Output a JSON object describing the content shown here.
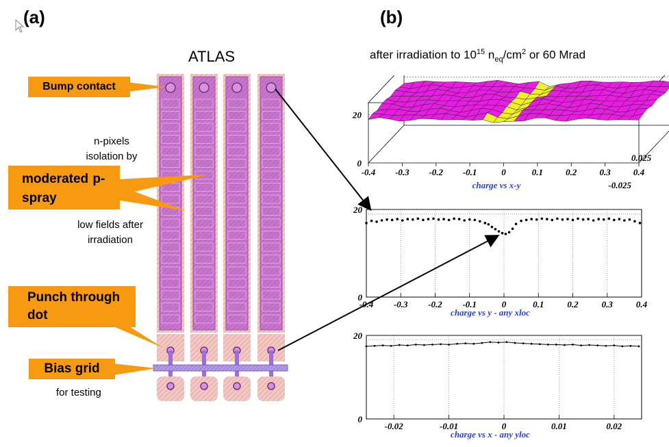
{
  "panel_a": {
    "label": "(a)",
    "title": "ATLAS",
    "callouts": {
      "bump_contact": "Bump contact",
      "moderated_p_spray": "moderated p-spray",
      "punch_through_dot": "Punch through dot",
      "bias_grid": "Bias grid"
    },
    "notes": {
      "n_pixels": "n-pixels isolation by",
      "low_fields": "low fields after irradiation",
      "for_testing": "for testing"
    }
  },
  "panel_b": {
    "label": "(b)",
    "title_main": "after irradiation to 10",
    "title_exp": "15",
    "title_neq": " n",
    "title_neq_sub": "eq",
    "title_unit": "/cm",
    "title_unit_exp": "2",
    "title_tail": " or 60 Mrad"
  },
  "colors": {
    "callout": "#f79a12",
    "pixel_fill": "#c774cc",
    "pixel_edge": "#e3a39b",
    "surface_magenta": "#e51ee0",
    "surface_yellow": "#eef02a",
    "caption_blue": "#2a40d8"
  },
  "chart_data": [
    {
      "type": "surface",
      "caption": "charge vs x-y",
      "x_ticks": [
        "-0.4",
        "-0.3",
        "-0.2",
        "-0.1",
        "0",
        "0.1",
        "0.2",
        "0.3",
        "0.4"
      ],
      "y_ticks": [
        "-0.025",
        "0.025"
      ],
      "z_ticks": [
        "0",
        "20"
      ],
      "xlim": [
        -0.4,
        0.4
      ],
      "ylim": [
        -0.025,
        0.025
      ],
      "zlim": [
        0,
        25
      ],
      "plateau": 18,
      "dip": 16
    },
    {
      "type": "scatter",
      "caption": "charge vs y - any xloc",
      "x_ticks": [
        "-0.4",
        "-0.3",
        "-0.2",
        "-0.1",
        "0",
        "0.1",
        "0.2",
        "0.3",
        "0.4"
      ],
      "y_ticks": [
        "0",
        "20"
      ],
      "xlim": [
        -0.4,
        0.4
      ],
      "ylim": [
        0,
        20
      ],
      "x": [
        -0.4,
        -0.385,
        -0.37,
        -0.355,
        -0.34,
        -0.325,
        -0.31,
        -0.295,
        -0.28,
        -0.265,
        -0.25,
        -0.235,
        -0.22,
        -0.205,
        -0.19,
        -0.175,
        -0.16,
        -0.145,
        -0.13,
        -0.115,
        -0.1,
        -0.085,
        -0.07,
        -0.055,
        -0.045,
        -0.035,
        -0.025,
        -0.015,
        -0.005,
        0.005,
        0.015,
        0.025,
        0.035,
        0.05,
        0.065,
        0.08,
        0.095,
        0.11,
        0.125,
        0.14,
        0.155,
        0.17,
        0.185,
        0.2,
        0.215,
        0.23,
        0.245,
        0.26,
        0.275,
        0.29,
        0.305,
        0.32,
        0.335,
        0.35,
        0.365,
        0.38,
        0.395
      ],
      "y": [
        16.9,
        17.4,
        17.2,
        17.5,
        17.7,
        17.6,
        17.8,
        17.5,
        17.8,
        17.7,
        17.9,
        17.6,
        17.8,
        17.9,
        17.7,
        17.8,
        17.6,
        17.9,
        17.8,
        17.5,
        17.7,
        17.6,
        17.3,
        16.9,
        16.6,
        16.0,
        15.5,
        15.0,
        14.6,
        14.4,
        14.8,
        15.6,
        16.7,
        17.4,
        17.6,
        17.8,
        17.7,
        17.9,
        17.8,
        17.6,
        17.9,
        17.7,
        17.8,
        17.6,
        17.9,
        17.7,
        17.8,
        17.5,
        17.8,
        17.7,
        17.9,
        17.6,
        17.8,
        17.5,
        17.7,
        17.3,
        16.9
      ]
    },
    {
      "type": "line",
      "caption": "charge vs x - any yloc",
      "x_ticks": [
        "-0.02",
        "-0.01",
        "0",
        "0.01",
        "0.02"
      ],
      "y_ticks": [
        "0",
        "20"
      ],
      "xlim": [
        -0.025,
        0.025
      ],
      "ylim": [
        0,
        20
      ],
      "x": [
        -0.025,
        -0.0235,
        -0.022,
        -0.0205,
        -0.019,
        -0.0175,
        -0.016,
        -0.0145,
        -0.013,
        -0.0115,
        -0.01,
        -0.0085,
        -0.007,
        -0.0055,
        -0.004,
        -0.0025,
        -0.001,
        0.0005,
        0.002,
        0.0035,
        0.005,
        0.0065,
        0.008,
        0.0095,
        0.011,
        0.0125,
        0.014,
        0.0155,
        0.017,
        0.0185,
        0.02,
        0.0215,
        0.023,
        0.0245
      ],
      "y": [
        17.4,
        17.5,
        17.6,
        17.5,
        17.7,
        17.6,
        17.8,
        17.7,
        17.8,
        17.9,
        17.8,
        18.0,
        18.1,
        18.0,
        18.2,
        18.4,
        18.3,
        18.4,
        18.2,
        18.1,
        18.0,
        17.9,
        17.8,
        17.8,
        17.7,
        17.8,
        17.6,
        17.7,
        17.6,
        17.5,
        17.6,
        17.4,
        17.5,
        17.4
      ]
    }
  ]
}
